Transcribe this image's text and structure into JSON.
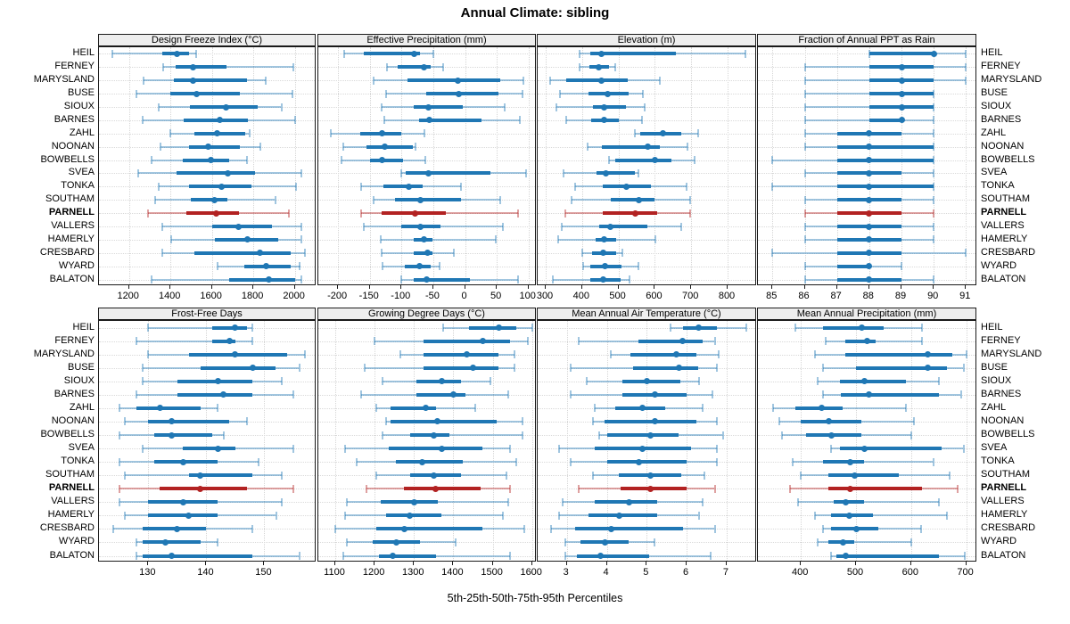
{
  "title": "Annual Climate: sibling",
  "caption": "5th-25th-50th-75th-95th Percentiles",
  "highlight_station": "PARNELL",
  "colors": {
    "series_blue": "#1f77b4",
    "series_blue_light": "rgba(31,119,180,0.42)",
    "highlight_red": "#b22222",
    "highlight_red_light": "rgba(178,34,34,0.42)",
    "strip_bg": "#eeeeee",
    "panel_border": "#1a1a1a",
    "grid": "#d6d6d6"
  },
  "stations": [
    "HEIL",
    "FERNEY",
    "MARYSLAND",
    "BUSE",
    "SIOUX",
    "BARNES",
    "ZAHL",
    "NOONAN",
    "BOWBELLS",
    "SVEA",
    "TONKA",
    "SOUTHAM",
    "PARNELL",
    "VALLERS",
    "HAMERLY",
    "CRESBARD",
    "WYARD",
    "BALATON"
  ],
  "chart_data": [
    {
      "type": "dotplot-percentiles",
      "title": "Design Freeze Index (°C)",
      "percentiles": [
        5,
        25,
        50,
        75,
        95
      ],
      "xlim": [
        1055,
        2105
      ],
      "ticks": [
        1200,
        1400,
        1600,
        1800,
        2000
      ],
      "values": [
        [
          1120,
          1360,
          1430,
          1490,
          1525
        ],
        [
          1365,
          1425,
          1510,
          1670,
          1995
        ],
        [
          1270,
          1415,
          1510,
          1770,
          1860
        ],
        [
          1235,
          1400,
          1525,
          1735,
          1990
        ],
        [
          1345,
          1495,
          1670,
          1820,
          1935
        ],
        [
          1265,
          1465,
          1640,
          1775,
          2000
        ],
        [
          1400,
          1515,
          1625,
          1760,
          1780
        ],
        [
          1350,
          1490,
          1580,
          1735,
          1835
        ],
        [
          1310,
          1460,
          1595,
          1685,
          1770
        ],
        [
          1245,
          1430,
          1675,
          1810,
          2030
        ],
        [
          1345,
          1490,
          1645,
          1790,
          2005
        ],
        [
          1325,
          1500,
          1610,
          1675,
          1905
        ],
        [
          1290,
          1475,
          1620,
          1730,
          1970
        ],
        [
          1360,
          1600,
          1730,
          1890,
          2030
        ],
        [
          1405,
          1615,
          1770,
          1920,
          2030
        ],
        [
          1360,
          1515,
          1830,
          1980,
          2050
        ],
        [
          1625,
          1755,
          1860,
          1980,
          2025
        ],
        [
          1310,
          1685,
          1875,
          2000,
          2030
        ]
      ]
    },
    {
      "type": "dotplot-percentiles",
      "title": "Effective Precipitation (mm)",
      "percentiles": [
        5,
        25,
        50,
        75,
        95
      ],
      "xlim": [
        -231,
        113
      ],
      "ticks": [
        -200,
        -150,
        -100,
        -50,
        0,
        50,
        100
      ],
      "values": [
        [
          -190,
          -159,
          -80,
          -71,
          -50
        ],
        [
          -123,
          -106,
          -65,
          -54,
          -34
        ],
        [
          -144,
          -90,
          -12,
          56,
          92
        ],
        [
          -124,
          -61,
          -10,
          52,
          90
        ],
        [
          -132,
          -81,
          -58,
          -4,
          63
        ],
        [
          -127,
          -72,
          -56,
          26,
          86
        ],
        [
          -212,
          -165,
          -131,
          -100,
          -64
        ],
        [
          -192,
          -155,
          -127,
          -82,
          -78
        ],
        [
          -195,
          -149,
          -131,
          -97,
          -63
        ],
        [
          -101,
          -93,
          -58,
          40,
          96
        ],
        [
          -164,
          -128,
          -88,
          -67,
          -6
        ],
        [
          -144,
          -110,
          -71,
          -7,
          55
        ],
        [
          -164,
          -131,
          -79,
          -30,
          83
        ],
        [
          -159,
          -101,
          -71,
          -39,
          60
        ],
        [
          -133,
          -81,
          -65,
          -51,
          49
        ],
        [
          -131,
          -81,
          -59,
          -51,
          -18
        ],
        [
          -130,
          -95,
          -72,
          -54,
          -40
        ],
        [
          -100,
          -81,
          -61,
          8,
          84
        ]
      ]
    },
    {
      "type": "dotplot-percentiles",
      "title": "Elevation (m)",
      "percentiles": [
        5,
        25,
        50,
        75,
        95
      ],
      "xlim": [
        278,
        881
      ],
      "ticks": [
        300,
        400,
        500,
        600,
        700,
        800
      ],
      "values": [
        [
          392,
          422,
          454,
          658,
          850
        ],
        [
          394,
          420,
          447,
          474,
          491
        ],
        [
          312,
          356,
          454,
          526,
          613
        ],
        [
          340,
          418,
          470,
          528,
          567
        ],
        [
          330,
          431,
          461,
          522,
          573
        ],
        [
          356,
          425,
          460,
          501,
          565
        ],
        [
          545,
          560,
          623,
          672,
          720
        ],
        [
          415,
          455,
          580,
          615,
          690
        ],
        [
          475,
          490,
          600,
          645,
          710
        ],
        [
          350,
          440,
          465,
          545,
          555
        ],
        [
          380,
          458,
          522,
          590,
          687
        ],
        [
          370,
          480,
          555,
          600,
          698
        ],
        [
          355,
          458,
          546,
          607,
          698
        ],
        [
          345,
          447,
          478,
          580,
          673
        ],
        [
          335,
          436,
          460,
          493,
          602
        ],
        [
          400,
          428,
          458,
          495,
          510
        ],
        [
          402,
          422,
          463,
          509,
          555
        ],
        [
          320,
          422,
          458,
          505,
          530
        ]
      ]
    },
    {
      "type": "dotplot-percentiles",
      "title": "Fraction of Annual PPT as Rain",
      "percentiles": [
        5,
        25,
        50,
        75,
        95
      ],
      "xlim": [
        84.55,
        91.35
      ],
      "ticks": [
        85,
        86,
        87,
        88,
        89,
        90,
        91
      ],
      "values": [
        [
          88,
          88,
          90,
          90,
          91
        ],
        [
          86,
          88,
          89,
          90,
          91
        ],
        [
          86,
          88,
          89,
          90,
          91
        ],
        [
          86,
          88,
          89,
          90,
          90
        ],
        [
          86,
          88,
          89,
          90,
          90
        ],
        [
          86,
          88,
          89,
          89,
          90
        ],
        [
          86,
          87,
          88,
          89,
          90
        ],
        [
          86,
          87,
          88,
          90,
          90
        ],
        [
          85,
          87,
          88,
          90,
          90
        ],
        [
          86,
          87,
          88,
          89,
          90
        ],
        [
          85,
          87,
          88,
          90,
          90
        ],
        [
          86,
          87,
          88,
          89,
          90
        ],
        [
          86,
          87,
          88,
          89,
          90
        ],
        [
          86,
          87,
          88,
          89,
          90
        ],
        [
          86,
          87,
          88,
          89,
          90
        ],
        [
          85,
          87,
          88,
          89,
          91
        ],
        [
          86,
          87,
          88,
          88,
          89
        ],
        [
          86,
          87,
          88,
          89,
          90
        ]
      ]
    },
    {
      "type": "dotplot-percentiles",
      "title": "Frost-Free Days",
      "percentiles": [
        5,
        25,
        50,
        75,
        95
      ],
      "xlim": [
        121.5,
        159
      ],
      "ticks": [
        130,
        140,
        150
      ],
      "values": [
        [
          130,
          141,
          145,
          147,
          148
        ],
        [
          128,
          141,
          144,
          145,
          148
        ],
        [
          130,
          137,
          145,
          154,
          157
        ],
        [
          129,
          139,
          148,
          152,
          156
        ],
        [
          129,
          135,
          142,
          148,
          153
        ],
        [
          128,
          135,
          143,
          148,
          155
        ],
        [
          125,
          128,
          132,
          139,
          142
        ],
        [
          126,
          130,
          134,
          144,
          147
        ],
        [
          125,
          131,
          134,
          141,
          143
        ],
        [
          129,
          136,
          142,
          145,
          155
        ],
        [
          125,
          131,
          136,
          142,
          149
        ],
        [
          126,
          137,
          139,
          148,
          153
        ],
        [
          125,
          132,
          139,
          147,
          155
        ],
        [
          125,
          130,
          136,
          142,
          153
        ],
        [
          126,
          130,
          137,
          142,
          152
        ],
        [
          124,
          129,
          135,
          140,
          148
        ],
        [
          128,
          129,
          133,
          139,
          142
        ],
        [
          128,
          129,
          134,
          148,
          156
        ]
      ]
    },
    {
      "type": "dotplot-percentiles",
      "title": "Growing Degree Days (°C)",
      "percentiles": [
        5,
        25,
        50,
        75,
        95
      ],
      "xlim": [
        1057,
        1612
      ],
      "ticks": [
        1100,
        1200,
        1300,
        1400,
        1500,
        1600
      ],
      "values": [
        [
          1375,
          1440,
          1515,
          1560,
          1600
        ],
        [
          1200,
          1325,
          1475,
          1545,
          1590
        ],
        [
          1265,
          1325,
          1435,
          1515,
          1555
        ],
        [
          1175,
          1325,
          1450,
          1515,
          1555
        ],
        [
          1220,
          1305,
          1370,
          1420,
          1495
        ],
        [
          1165,
          1305,
          1400,
          1430,
          1540
        ],
        [
          1205,
          1240,
          1330,
          1355,
          1455
        ],
        [
          1230,
          1240,
          1360,
          1510,
          1575
        ],
        [
          1220,
          1290,
          1350,
          1390,
          1575
        ],
        [
          1125,
          1235,
          1370,
          1475,
          1545
        ],
        [
          1155,
          1255,
          1320,
          1425,
          1560
        ],
        [
          1205,
          1290,
          1350,
          1420,
          1535
        ],
        [
          1180,
          1275,
          1355,
          1470,
          1545
        ],
        [
          1130,
          1215,
          1300,
          1360,
          1540
        ],
        [
          1125,
          1230,
          1290,
          1370,
          1525
        ],
        [
          1100,
          1205,
          1275,
          1475,
          1580
        ],
        [
          1130,
          1195,
          1255,
          1315,
          1405
        ],
        [
          1120,
          1210,
          1245,
          1355,
          1545
        ]
      ]
    },
    {
      "type": "dotplot-percentiles",
      "title": "Mean Annual Air Temperature (°C)",
      "percentiles": [
        5,
        25,
        50,
        75,
        95
      ],
      "xlim": [
        2.27,
        7.76
      ],
      "ticks": [
        3,
        4,
        5,
        6,
        7
      ],
      "values": [
        [
          5.6,
          5.9,
          6.3,
          6.75,
          7.5
        ],
        [
          3.3,
          4.8,
          5.9,
          6.4,
          6.7
        ],
        [
          4.1,
          4.6,
          5.75,
          6.25,
          6.8
        ],
        [
          3.1,
          4.65,
          5.8,
          6.3,
          6.75
        ],
        [
          3.5,
          4.4,
          5.0,
          5.85,
          6.3
        ],
        [
          3.1,
          4.4,
          5.2,
          6.0,
          6.65
        ],
        [
          3.7,
          4.2,
          4.9,
          5.45,
          6.4
        ],
        [
          3.65,
          3.95,
          5.2,
          6.25,
          6.75
        ],
        [
          3.8,
          4.0,
          5.1,
          5.8,
          6.9
        ],
        [
          2.8,
          3.7,
          4.9,
          6.1,
          6.75
        ],
        [
          3.1,
          4.0,
          4.8,
          6.0,
          6.75
        ],
        [
          3.65,
          4.3,
          5.1,
          5.85,
          6.45
        ],
        [
          3.3,
          4.35,
          5.1,
          6.0,
          6.7
        ],
        [
          2.9,
          3.7,
          4.55,
          5.25,
          6.4
        ],
        [
          2.8,
          3.55,
          4.3,
          5.25,
          6.3
        ],
        [
          2.6,
          3.2,
          4.1,
          5.9,
          6.7
        ],
        [
          2.95,
          3.35,
          3.95,
          4.55,
          5.2
        ],
        [
          2.95,
          3.25,
          3.85,
          5.05,
          6.6
        ]
      ]
    },
    {
      "type": "dotplot-percentiles",
      "title": "Mean Annual Precipitation (mm)",
      "percentiles": [
        5,
        25,
        50,
        75,
        95
      ],
      "xlim": [
        322,
        720
      ],
      "ticks": [
        400,
        500,
        600,
        700
      ],
      "values": [
        [
          390,
          440,
          510,
          550,
          620
        ],
        [
          445,
          480,
          520,
          535,
          620
        ],
        [
          425,
          480,
          630,
          675,
          700
        ],
        [
          440,
          500,
          630,
          665,
          695
        ],
        [
          430,
          470,
          515,
          590,
          650
        ],
        [
          440,
          472,
          523,
          650,
          690
        ],
        [
          350,
          390,
          438,
          475,
          590
        ],
        [
          360,
          400,
          450,
          510,
          605
        ],
        [
          365,
          410,
          455,
          510,
          600
        ],
        [
          455,
          470,
          515,
          655,
          695
        ],
        [
          385,
          440,
          490,
          515,
          640
        ],
        [
          400,
          450,
          497,
          578,
          670
        ],
        [
          380,
          450,
          490,
          620,
          685
        ],
        [
          395,
          460,
          481,
          515,
          650
        ],
        [
          425,
          455,
          487,
          530,
          665
        ],
        [
          440,
          455,
          500,
          540,
          618
        ],
        [
          430,
          450,
          476,
          497,
          600
        ],
        [
          455,
          465,
          481,
          650,
          697
        ]
      ]
    }
  ]
}
